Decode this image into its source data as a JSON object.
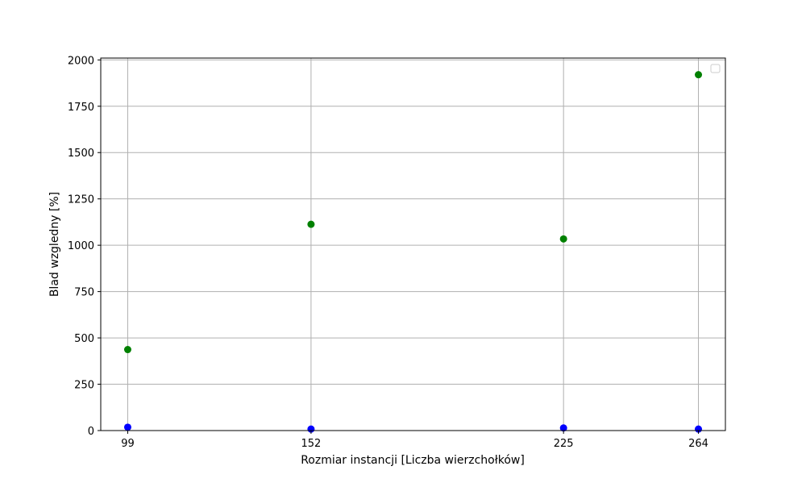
{
  "chart_data": {
    "type": "scatter",
    "title": "",
    "xlabel": "Rozmiar instancji [Liczba wierzchołków]",
    "ylabel": "Blad wzgledny [%]",
    "x_ticks": [
      99,
      152,
      225,
      264
    ],
    "y_ticks": [
      0,
      250,
      500,
      750,
      1000,
      1250,
      1500,
      1750,
      2000
    ],
    "xlim": [
      91.2,
      271.8
    ],
    "ylim": [
      0,
      2010
    ],
    "grid": true,
    "legend": "top-right",
    "series": [
      {
        "color": "#008000",
        "points": [
          {
            "x": 99,
            "y": 437
          },
          {
            "x": 152,
            "y": 1113
          },
          {
            "x": 225,
            "y": 1034
          },
          {
            "x": 264,
            "y": 1920
          }
        ]
      },
      {
        "color": "#0000ff",
        "points": [
          {
            "x": 99,
            "y": 18
          },
          {
            "x": 152,
            "y": 8
          },
          {
            "x": 225,
            "y": 14
          },
          {
            "x": 264,
            "y": 8
          }
        ]
      }
    ]
  }
}
